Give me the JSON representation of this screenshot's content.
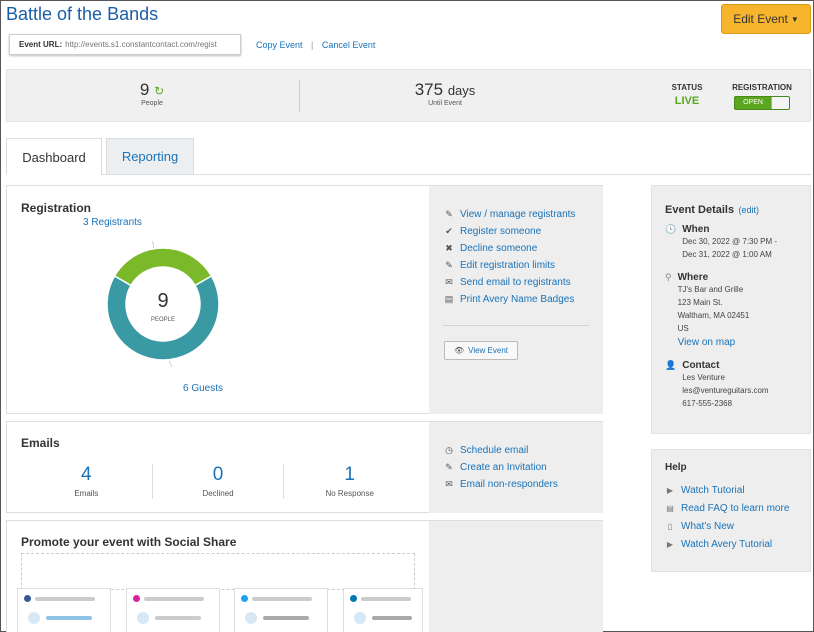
{
  "header": {
    "title": "Battle of the Bands",
    "edit_button": "Edit Event",
    "url_label": "Event URL:",
    "url_value": "http://events.s1.constantcontact.com/regist",
    "copy_event": "Copy Event",
    "separator": "|",
    "cancel_event": "Cancel Event"
  },
  "stats": {
    "people_count": "9",
    "people_label": "People",
    "days_count": "375",
    "days_unit": "days",
    "days_label": "Until Event",
    "status_label": "STATUS",
    "status_value": "LIVE",
    "registration_label": "REGISTRATION",
    "registration_toggle": "OPEN"
  },
  "tabs": {
    "dashboard": "Dashboard",
    "reporting": "Reporting"
  },
  "registration": {
    "title": "Registration",
    "registrants_label": "3 Registrants",
    "guests_label": "6 Guests",
    "center_value": "9",
    "center_label": "PEOPLE",
    "donut": {
      "registrants": 3,
      "guests": 6,
      "registrant_color": "#7ab929",
      "guest_color": "#3a9aa3"
    },
    "actions": [
      "View / manage registrants",
      "Register someone",
      "Decline someone",
      "Edit registration limits",
      "Send email to registrants",
      "Print Avery Name Badges"
    ],
    "view_event_button": "View Event"
  },
  "emails": {
    "title": "Emails",
    "stats": [
      {
        "value": "4",
        "label": "Emails"
      },
      {
        "value": "0",
        "label": "Declined"
      },
      {
        "value": "1",
        "label": "No Response"
      }
    ],
    "actions": [
      "Schedule email",
      "Create an Invitation",
      "Email non-responders"
    ]
  },
  "social": {
    "title": "Promote your event with Social Share"
  },
  "event_details": {
    "title": "Event Details",
    "edit_link": "(edit)",
    "when_label": "When",
    "when_lines": [
      "Dec 30, 2022 @ 7:30 PM -",
      "Dec 31, 2022 @ 1:00 AM"
    ],
    "where_label": "Where",
    "where_lines": [
      "TJ's Bar and Grille",
      "123 Main St.",
      "Waltham, MA 02451",
      "US"
    ],
    "map_link": "View on map",
    "contact_label": "Contact",
    "contact_lines": [
      "Les Venture",
      "les@ventureguitars.com",
      "617-555-2368"
    ]
  },
  "help": {
    "title": "Help",
    "links": [
      "Watch Tutorial",
      "Read FAQ to learn more",
      "What's New",
      "Watch Avery Tutorial"
    ]
  },
  "colors": {
    "accent": "#1a73b8",
    "live_green": "#5aa61f",
    "button_orange": "#f6b52c"
  }
}
